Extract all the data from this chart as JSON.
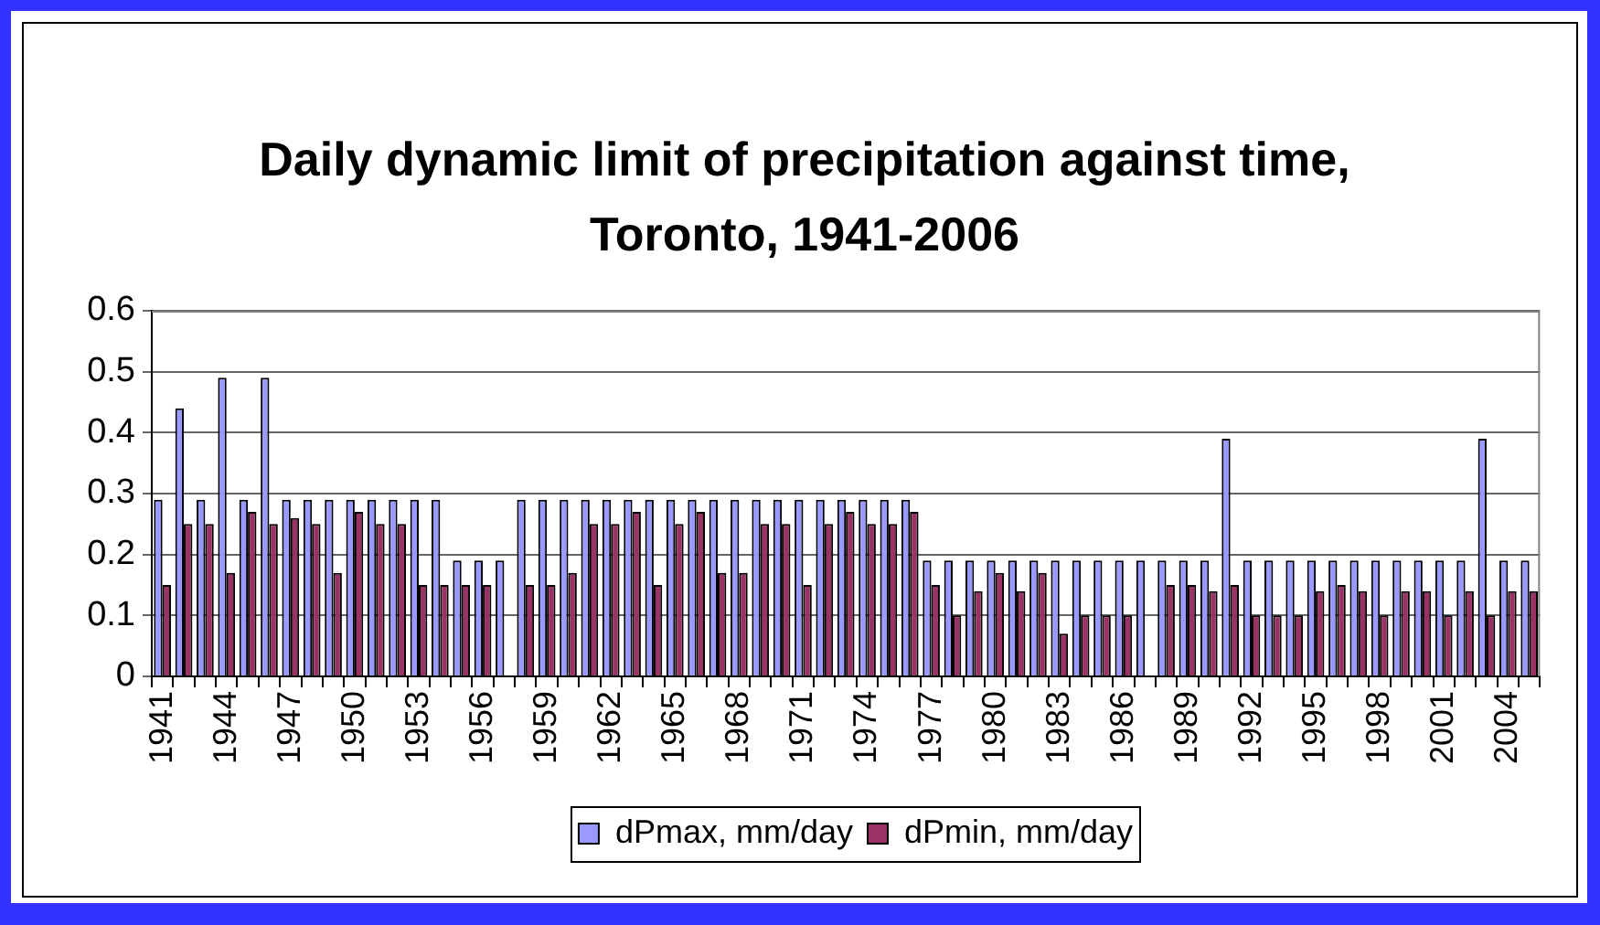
{
  "chart_data": {
    "type": "bar",
    "title": "Daily dynamic limit of precipitation against time, Toronto, 1941-2006",
    "categories": [
      "1941",
      null,
      null,
      "1944",
      null,
      null,
      "1947",
      null,
      null,
      "1950",
      null,
      null,
      "1953",
      null,
      null,
      "1956",
      null,
      null,
      "1959",
      null,
      null,
      "1962",
      null,
      null,
      "1965",
      null,
      null,
      "1968",
      null,
      null,
      "1971",
      null,
      null,
      "1974",
      null,
      null,
      "1977",
      null,
      null,
      "1980",
      null,
      null,
      "1983",
      null,
      null,
      "1986",
      null,
      null,
      "1989",
      null,
      null,
      "1992",
      null,
      null,
      "1995",
      null,
      null,
      "1998",
      null,
      null,
      "2001",
      null,
      null,
      "2004",
      null
    ],
    "series": [
      {
        "name": "dPmax, mm/day",
        "color": "#9999ff",
        "values": [
          0.29,
          0.44,
          0.29,
          0.49,
          0.29,
          0.49,
          0.29,
          0.29,
          0.29,
          0.29,
          0.29,
          0.29,
          0.29,
          0.29,
          0.19,
          0.19,
          0.19,
          0.29,
          0.29,
          0.29,
          0.29,
          0.29,
          0.29,
          0.29,
          0.29,
          0.29,
          0.29,
          0.29,
          0.29,
          0.29,
          0.29,
          0.29,
          0.29,
          0.29,
          0.29,
          0.29,
          0.19,
          0.19,
          0.19,
          0.19,
          0.19,
          0.19,
          0.19,
          0.19,
          0.19,
          0.19,
          0.19,
          0.19,
          0.19,
          0.19,
          0.39,
          0.19,
          0.19,
          0.19,
          0.19,
          0.19,
          0.19,
          0.19,
          0.19,
          0.19,
          0.19,
          0.19,
          0.39,
          0.19,
          0.19
        ]
      },
      {
        "name": "dPmin, mm/day",
        "color": "#993366",
        "values": [
          0.15,
          0.25,
          0.25,
          0.17,
          0.27,
          0.25,
          0.26,
          0.25,
          0.17,
          0.27,
          0.25,
          0.25,
          0.15,
          0.15,
          0.15,
          0.15,
          null,
          0.15,
          0.15,
          0.17,
          0.25,
          0.25,
          0.27,
          0.15,
          0.25,
          0.27,
          0.17,
          0.17,
          0.25,
          0.25,
          0.15,
          0.25,
          0.27,
          0.25,
          0.25,
          0.27,
          0.15,
          0.1,
          0.14,
          0.17,
          0.14,
          0.17,
          0.07,
          0.1,
          0.1,
          0.1,
          null,
          0.15,
          0.15,
          0.14,
          0.15,
          0.1,
          0.1,
          0.1,
          0.14,
          0.15,
          0.14,
          0.1,
          0.14,
          0.14,
          0.1,
          0.14,
          0.1,
          0.14,
          0.14
        ]
      }
    ],
    "ylim": [
      0,
      0.6
    ],
    "yticks": [
      0,
      0.1,
      0.2,
      0.3,
      0.4,
      0.5,
      0.6
    ],
    "grid": "y",
    "legend": "bottom"
  }
}
